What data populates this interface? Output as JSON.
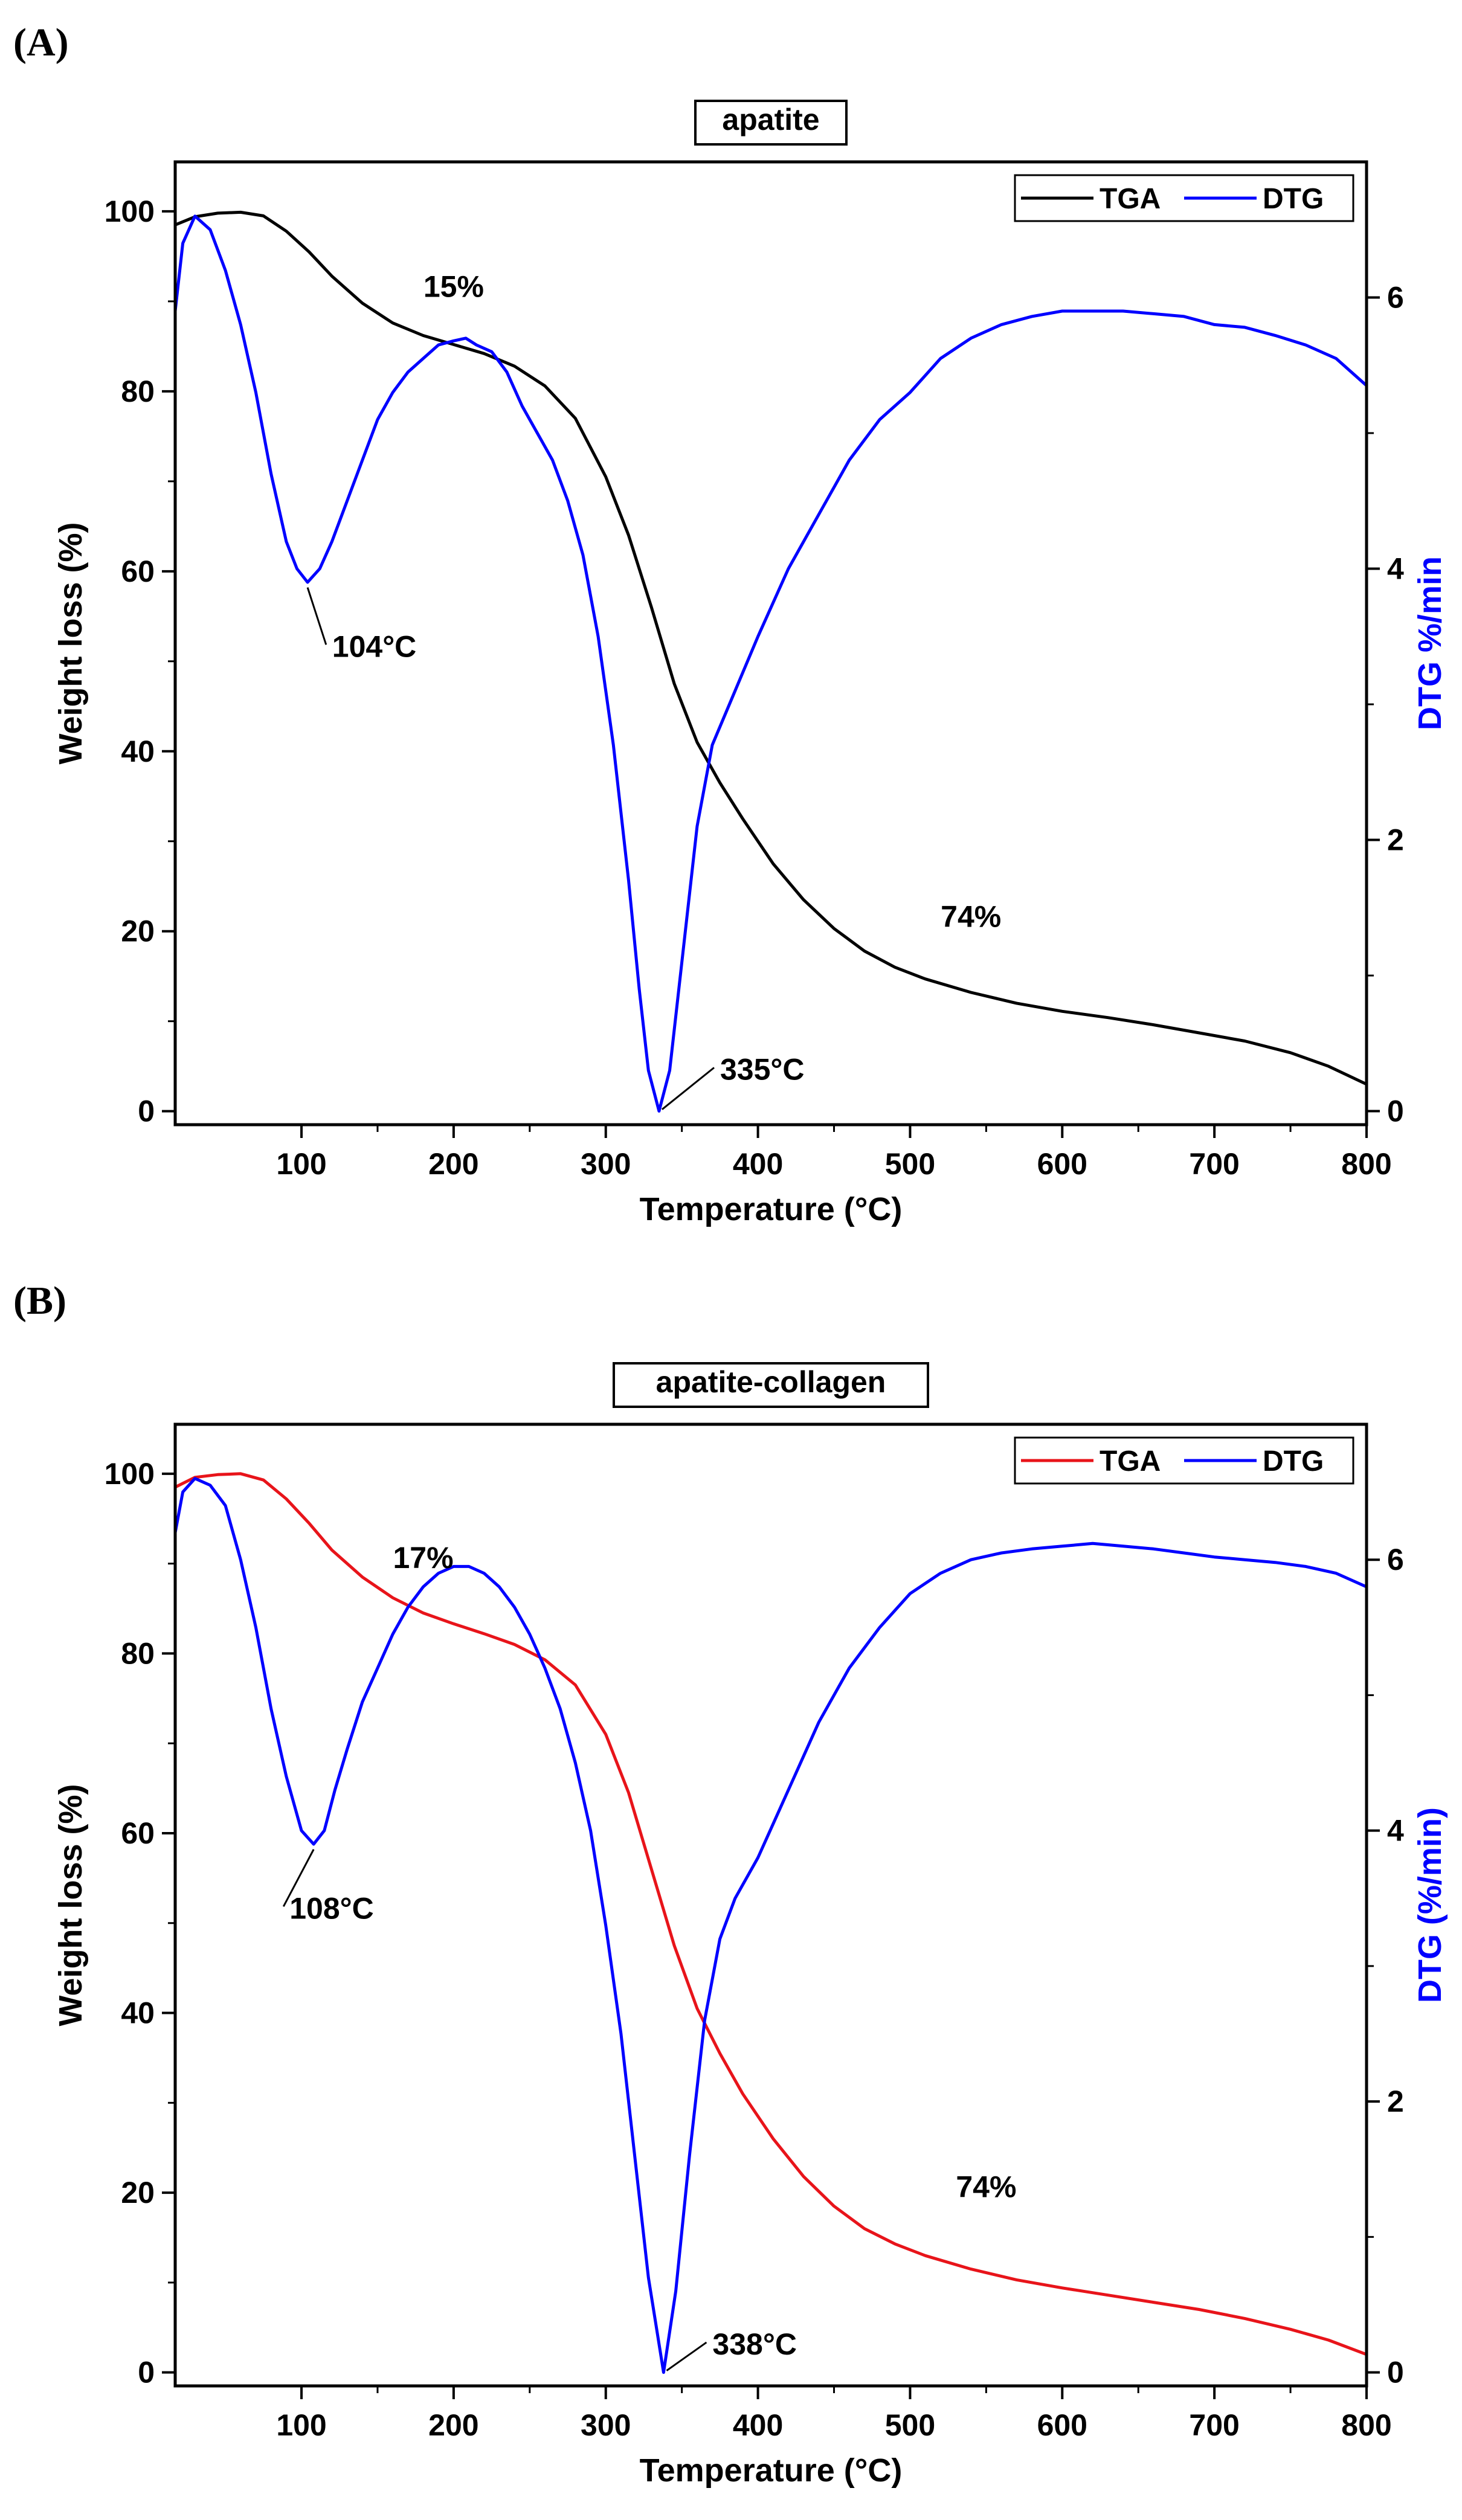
{
  "chart_data": [
    {
      "panel_label": "(A)",
      "type": "line",
      "title": "apatite",
      "xlabel": "Temperature (°C)",
      "ylabel": "Weight loss (%)",
      "y2label": "DTG %/min",
      "xlim": [
        17,
        800
      ],
      "ylim": [
        -1.5,
        105.5
      ],
      "y2lim": [
        -0.1,
        7.0
      ],
      "xticks": [
        100,
        200,
        300,
        400,
        500,
        600,
        700,
        800
      ],
      "yticks": [
        0,
        20,
        40,
        60,
        80,
        100
      ],
      "y2ticks": [
        0,
        2,
        4,
        6
      ],
      "legend": {
        "placement": "top-right"
      },
      "series": [
        {
          "name": "TGA",
          "axis": "left",
          "color": "#000000",
          "x": [
            17,
            30,
            45,
            60,
            75,
            90,
            105,
            120,
            140,
            160,
            180,
            200,
            220,
            240,
            260,
            280,
            300,
            315,
            330,
            345,
            360,
            375,
            390,
            410,
            430,
            450,
            470,
            490,
            510,
            540,
            570,
            600,
            630,
            660,
            690,
            720,
            750,
            775,
            800
          ],
          "y": [
            98.5,
            99.4,
            99.8,
            99.9,
            99.5,
            97.8,
            95.5,
            92.8,
            89.8,
            87.6,
            86.2,
            85.2,
            84.2,
            82.8,
            80.6,
            77.0,
            70.5,
            64.0,
            56.0,
            47.5,
            41.0,
            36.5,
            32.5,
            27.5,
            23.5,
            20.3,
            17.8,
            16.0,
            14.7,
            13.2,
            12.0,
            11.1,
            10.4,
            9.6,
            8.7,
            7.8,
            6.5,
            5.0,
            3.0
          ]
        },
        {
          "name": "DTG",
          "axis": "right",
          "color": "#0000ff",
          "x": [
            17,
            22,
            30,
            40,
            50,
            60,
            70,
            80,
            90,
            97,
            104,
            112,
            120,
            130,
            140,
            150,
            160,
            170,
            180,
            190,
            200,
            208,
            215,
            225,
            235,
            245,
            255,
            265,
            275,
            285,
            295,
            305,
            315,
            322,
            328,
            335,
            342,
            350,
            360,
            370,
            385,
            400,
            420,
            440,
            460,
            480,
            500,
            520,
            540,
            560,
            580,
            600,
            620,
            640,
            660,
            680,
            700,
            720,
            740,
            760,
            780,
            800
          ],
          "y": [
            5.9,
            6.4,
            6.6,
            6.5,
            6.2,
            5.8,
            5.3,
            4.7,
            4.2,
            4.0,
            3.9,
            4.0,
            4.2,
            4.5,
            4.8,
            5.1,
            5.3,
            5.45,
            5.55,
            5.65,
            5.68,
            5.7,
            5.65,
            5.6,
            5.45,
            5.2,
            5.0,
            4.8,
            4.5,
            4.1,
            3.5,
            2.7,
            1.7,
            0.9,
            0.3,
            0.0,
            0.3,
            1.1,
            2.1,
            2.7,
            3.1,
            3.5,
            4.0,
            4.4,
            4.8,
            5.1,
            5.3,
            5.55,
            5.7,
            5.8,
            5.86,
            5.9,
            5.9,
            5.9,
            5.88,
            5.86,
            5.8,
            5.78,
            5.72,
            5.65,
            5.55,
            5.35
          ]
        }
      ],
      "annotations": [
        {
          "text": "15%",
          "x": 200,
          "y": 90.5
        },
        {
          "text": "104°C",
          "x": 140,
          "y": 50.5,
          "arrow_x": 104,
          "arrow_y": 58.2
        },
        {
          "text": "74%",
          "x": 540,
          "y": 20.5
        },
        {
          "text": "335°C",
          "x": 395,
          "y": 3.5,
          "arrow_x": 337,
          "arrow_y": 0.2
        }
      ]
    },
    {
      "panel_label": "(B)",
      "type": "line",
      "title": "apatite-collagen",
      "xlabel": "Temperature (°C)",
      "ylabel": "Weight loss (%)",
      "y2label": "DTG (%/min)",
      "xlim": [
        17,
        800
      ],
      "ylim": [
        -1.5,
        105.5
      ],
      "y2lim": [
        -0.1,
        7.0
      ],
      "xticks": [
        100,
        200,
        300,
        400,
        500,
        600,
        700,
        800
      ],
      "yticks": [
        0,
        20,
        40,
        60,
        80,
        100
      ],
      "y2ticks": [
        0,
        2,
        4,
        6
      ],
      "legend": {
        "placement": "top-right"
      },
      "series": [
        {
          "name": "TGA",
          "axis": "left",
          "color": "#e8141a",
          "x": [
            17,
            30,
            45,
            60,
            75,
            90,
            105,
            120,
            140,
            160,
            180,
            200,
            220,
            240,
            260,
            280,
            300,
            315,
            330,
            345,
            360,
            375,
            390,
            410,
            430,
            450,
            470,
            490,
            510,
            540,
            570,
            600,
            630,
            660,
            690,
            720,
            750,
            775,
            800
          ],
          "y": [
            98.5,
            99.6,
            99.9,
            100.0,
            99.3,
            97.2,
            94.5,
            91.5,
            88.5,
            86.2,
            84.5,
            83.3,
            82.2,
            81.0,
            79.3,
            76.5,
            71.0,
            64.5,
            56.0,
            47.5,
            40.5,
            35.5,
            31.0,
            26.0,
            21.8,
            18.5,
            16.0,
            14.3,
            13.0,
            11.5,
            10.3,
            9.4,
            8.6,
            7.8,
            7.0,
            6.0,
            4.8,
            3.6,
            2.0
          ]
        },
        {
          "name": "DTG",
          "axis": "right",
          "color": "#0000ff",
          "x": [
            17,
            22,
            30,
            40,
            50,
            60,
            70,
            80,
            90,
            100,
            108,
            115,
            122,
            130,
            140,
            150,
            160,
            170,
            180,
            190,
            200,
            210,
            220,
            230,
            240,
            250,
            260,
            270,
            280,
            290,
            300,
            310,
            320,
            328,
            338,
            346,
            355,
            365,
            375,
            385,
            400,
            420,
            440,
            460,
            480,
            500,
            520,
            540,
            560,
            580,
            600,
            620,
            640,
            660,
            680,
            700,
            720,
            740,
            760,
            780,
            800
          ],
          "y": [
            6.2,
            6.5,
            6.6,
            6.55,
            6.4,
            6.0,
            5.5,
            4.9,
            4.4,
            4.0,
            3.9,
            4.0,
            4.3,
            4.6,
            4.95,
            5.2,
            5.45,
            5.65,
            5.8,
            5.9,
            5.95,
            5.95,
            5.9,
            5.8,
            5.65,
            5.45,
            5.2,
            4.9,
            4.5,
            4.0,
            3.3,
            2.5,
            1.5,
            0.7,
            0.0,
            0.6,
            1.6,
            2.6,
            3.2,
            3.5,
            3.8,
            4.3,
            4.8,
            5.2,
            5.5,
            5.75,
            5.9,
            6.0,
            6.05,
            6.08,
            6.1,
            6.12,
            6.1,
            6.08,
            6.05,
            6.02,
            6.0,
            5.98,
            5.95,
            5.9,
            5.8
          ]
        }
      ],
      "annotations": [
        {
          "text": "17%",
          "x": 180,
          "y": 89.5
        },
        {
          "text": "108°C",
          "x": 112,
          "y": 50.5,
          "arrow_x": 108,
          "arrow_y": 58.2
        },
        {
          "text": "74%",
          "x": 550,
          "y": 19.5
        },
        {
          "text": "338°C",
          "x": 390,
          "y": 2.0,
          "arrow_x": 340,
          "arrow_y": 0.2
        }
      ]
    }
  ]
}
